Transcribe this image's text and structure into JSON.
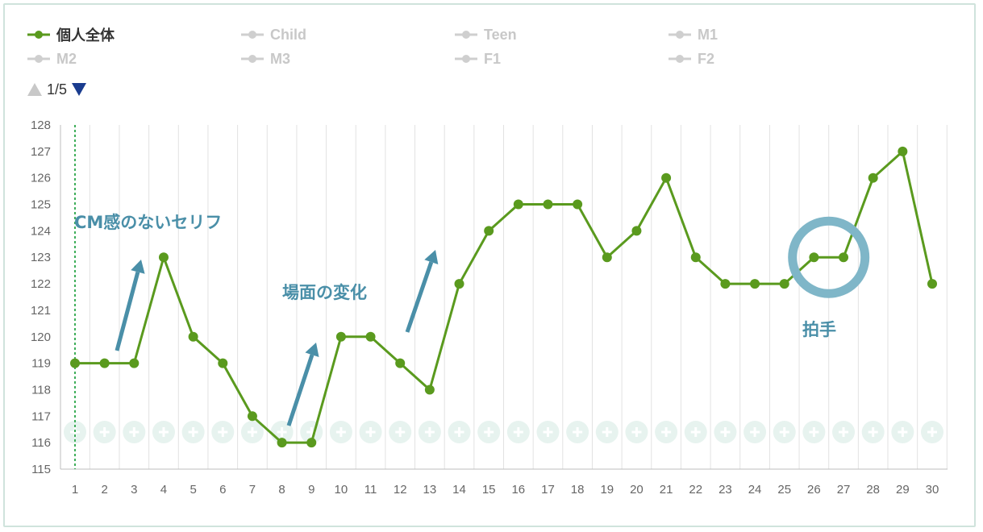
{
  "legend": {
    "items": [
      {
        "label": "個人全体",
        "active": true
      },
      {
        "label": "Child",
        "active": false
      },
      {
        "label": "Teen",
        "active": false
      },
      {
        "label": "M1",
        "active": false
      },
      {
        "label": "M2",
        "active": false
      },
      {
        "label": "M3",
        "active": false
      },
      {
        "label": "F1",
        "active": false
      },
      {
        "label": "F2",
        "active": false
      }
    ]
  },
  "pager": {
    "text": "1/5"
  },
  "colors": {
    "series": "#5a9a1e",
    "annotation": "#4a8fa8",
    "grid": "#e2e2e2",
    "marker_line": "#3fae5a",
    "plus": "#e7f3ef"
  },
  "chart_data": {
    "type": "line",
    "x": [
      1,
      2,
      3,
      4,
      5,
      6,
      7,
      8,
      9,
      10,
      11,
      12,
      13,
      14,
      15,
      16,
      17,
      18,
      19,
      20,
      21,
      22,
      23,
      24,
      25,
      26,
      27,
      28,
      29,
      30
    ],
    "series": [
      {
        "name": "個人全体",
        "values": [
          119,
          119,
          119,
          123,
          120,
          119,
          117,
          116,
          116,
          120,
          120,
          119,
          118,
          122,
          124,
          125,
          125,
          125,
          123,
          124,
          126,
          123,
          122,
          122,
          122,
          123,
          123,
          126,
          127,
          122
        ]
      }
    ],
    "ylim": [
      115,
      128
    ],
    "yticks": [
      115,
      116,
      117,
      118,
      119,
      120,
      121,
      122,
      123,
      124,
      125,
      126,
      127,
      128
    ],
    "xticks": [
      "1",
      "2",
      "3",
      "4",
      "5",
      "6",
      "7",
      "8",
      "9",
      "10",
      "11",
      "12",
      "13",
      "14",
      "15",
      "16",
      "17",
      "18",
      "19",
      "20",
      "21",
      "22",
      "23",
      "24",
      "25",
      "26",
      "27",
      "28",
      "29",
      "30"
    ],
    "grid": "vertical",
    "marker_x": 1,
    "annotations": [
      {
        "text": "CM感のないセリフ"
      },
      {
        "text": "場面の変化"
      },
      {
        "text": "拍手"
      }
    ],
    "highlight_points": [
      26,
      27
    ]
  }
}
